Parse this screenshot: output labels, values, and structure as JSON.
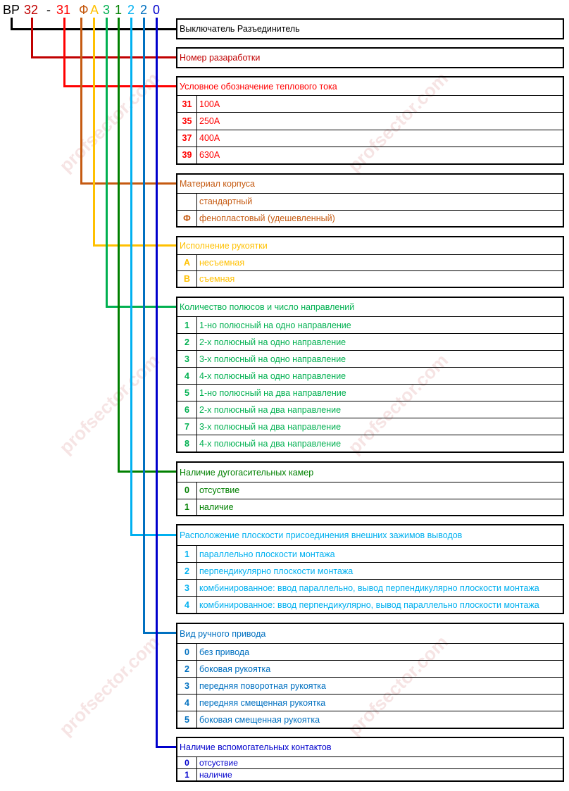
{
  "watermark": "profsector.com",
  "code": {
    "prefix": "ВР",
    "parts": [
      "32",
      "-",
      "31",
      "Ф",
      "А",
      "3",
      "1",
      "2",
      "2",
      "0"
    ]
  },
  "colors": {
    "black": "#000000",
    "dev": "#c00000",
    "current": "#ff0000",
    "material": "#c55a11",
    "handle": "#ffc000",
    "poles": "#00b050",
    "arc": "#008000",
    "terminals": "#00b0f0",
    "drive": "#0070c0",
    "aux": "#0000cc"
  },
  "sections": [
    {
      "title": "Выключатель Разъединитель",
      "rows": []
    },
    {
      "title": "Номер разаработки",
      "rows": []
    },
    {
      "title": "Условное обозначение теплового тока",
      "rows": [
        {
          "key": "31",
          "value": "100А"
        },
        {
          "key": "35",
          "value": "250А"
        },
        {
          "key": "37",
          "value": "400А"
        },
        {
          "key": "39",
          "value": "630А"
        }
      ]
    },
    {
      "title": "Материал корпуса",
      "rows": [
        {
          "key": "",
          "value": "стандартный"
        },
        {
          "key": "Ф",
          "value": "фенопластовый (удешевленный)"
        }
      ]
    },
    {
      "title": "Исполнение рукоятки",
      "rows": [
        {
          "key": "А",
          "value": "несъемная"
        },
        {
          "key": "В",
          "value": "съемная"
        }
      ]
    },
    {
      "title": "Количество полюсов и число направлений",
      "rows": [
        {
          "key": "1",
          "value": "1-но полюсный на одно направление"
        },
        {
          "key": "2",
          "value": "2-х полюсный на одно направление"
        },
        {
          "key": "3",
          "value": "3-х полюсный на одно направление"
        },
        {
          "key": "4",
          "value": "4-х полюсный на одно направление"
        },
        {
          "key": "5",
          "value": "1-но полюсный на два направление"
        },
        {
          "key": "6",
          "value": "2-х полюсный на два направление"
        },
        {
          "key": "7",
          "value": "3-х полюсный на два направление"
        },
        {
          "key": "8",
          "value": "4-х полюсный на два направление"
        }
      ]
    },
    {
      "title": "Наличие дугогасительных камер",
      "rows": [
        {
          "key": "0",
          "value": "отсуствие"
        },
        {
          "key": "1",
          "value": "наличие"
        }
      ]
    },
    {
      "title": "Расположение плоскости присоединения внешних зажимов выводов",
      "rows": [
        {
          "key": "1",
          "value": "параллельно плоскости монтажа"
        },
        {
          "key": "2",
          "value": "перпендикулярно плоскости монтажа"
        },
        {
          "key": "3",
          "value": "комбинированное: ввод параллельно, вывод перпендикулярно плоскости монтажа"
        },
        {
          "key": "4",
          "value": "комбинированное: ввод перпендикулярно, вывод параллельно плоскости монтажа"
        }
      ]
    },
    {
      "title": "Вид ручного привода",
      "rows": [
        {
          "key": "0",
          "value": "без привода"
        },
        {
          "key": "2",
          "value": "боковая рукоятка"
        },
        {
          "key": "3",
          "value": "передняя поворотная рукоятка"
        },
        {
          "key": "4",
          "value": "передняя смещенная рукоятка"
        },
        {
          "key": "5",
          "value": "боковая смещенная рукоятка"
        }
      ]
    },
    {
      "title": "Наличие вспомогательных контактов",
      "rows": [
        {
          "key": "0",
          "value": "отсуствие"
        },
        {
          "key": "1",
          "value": "наличие"
        }
      ]
    }
  ]
}
